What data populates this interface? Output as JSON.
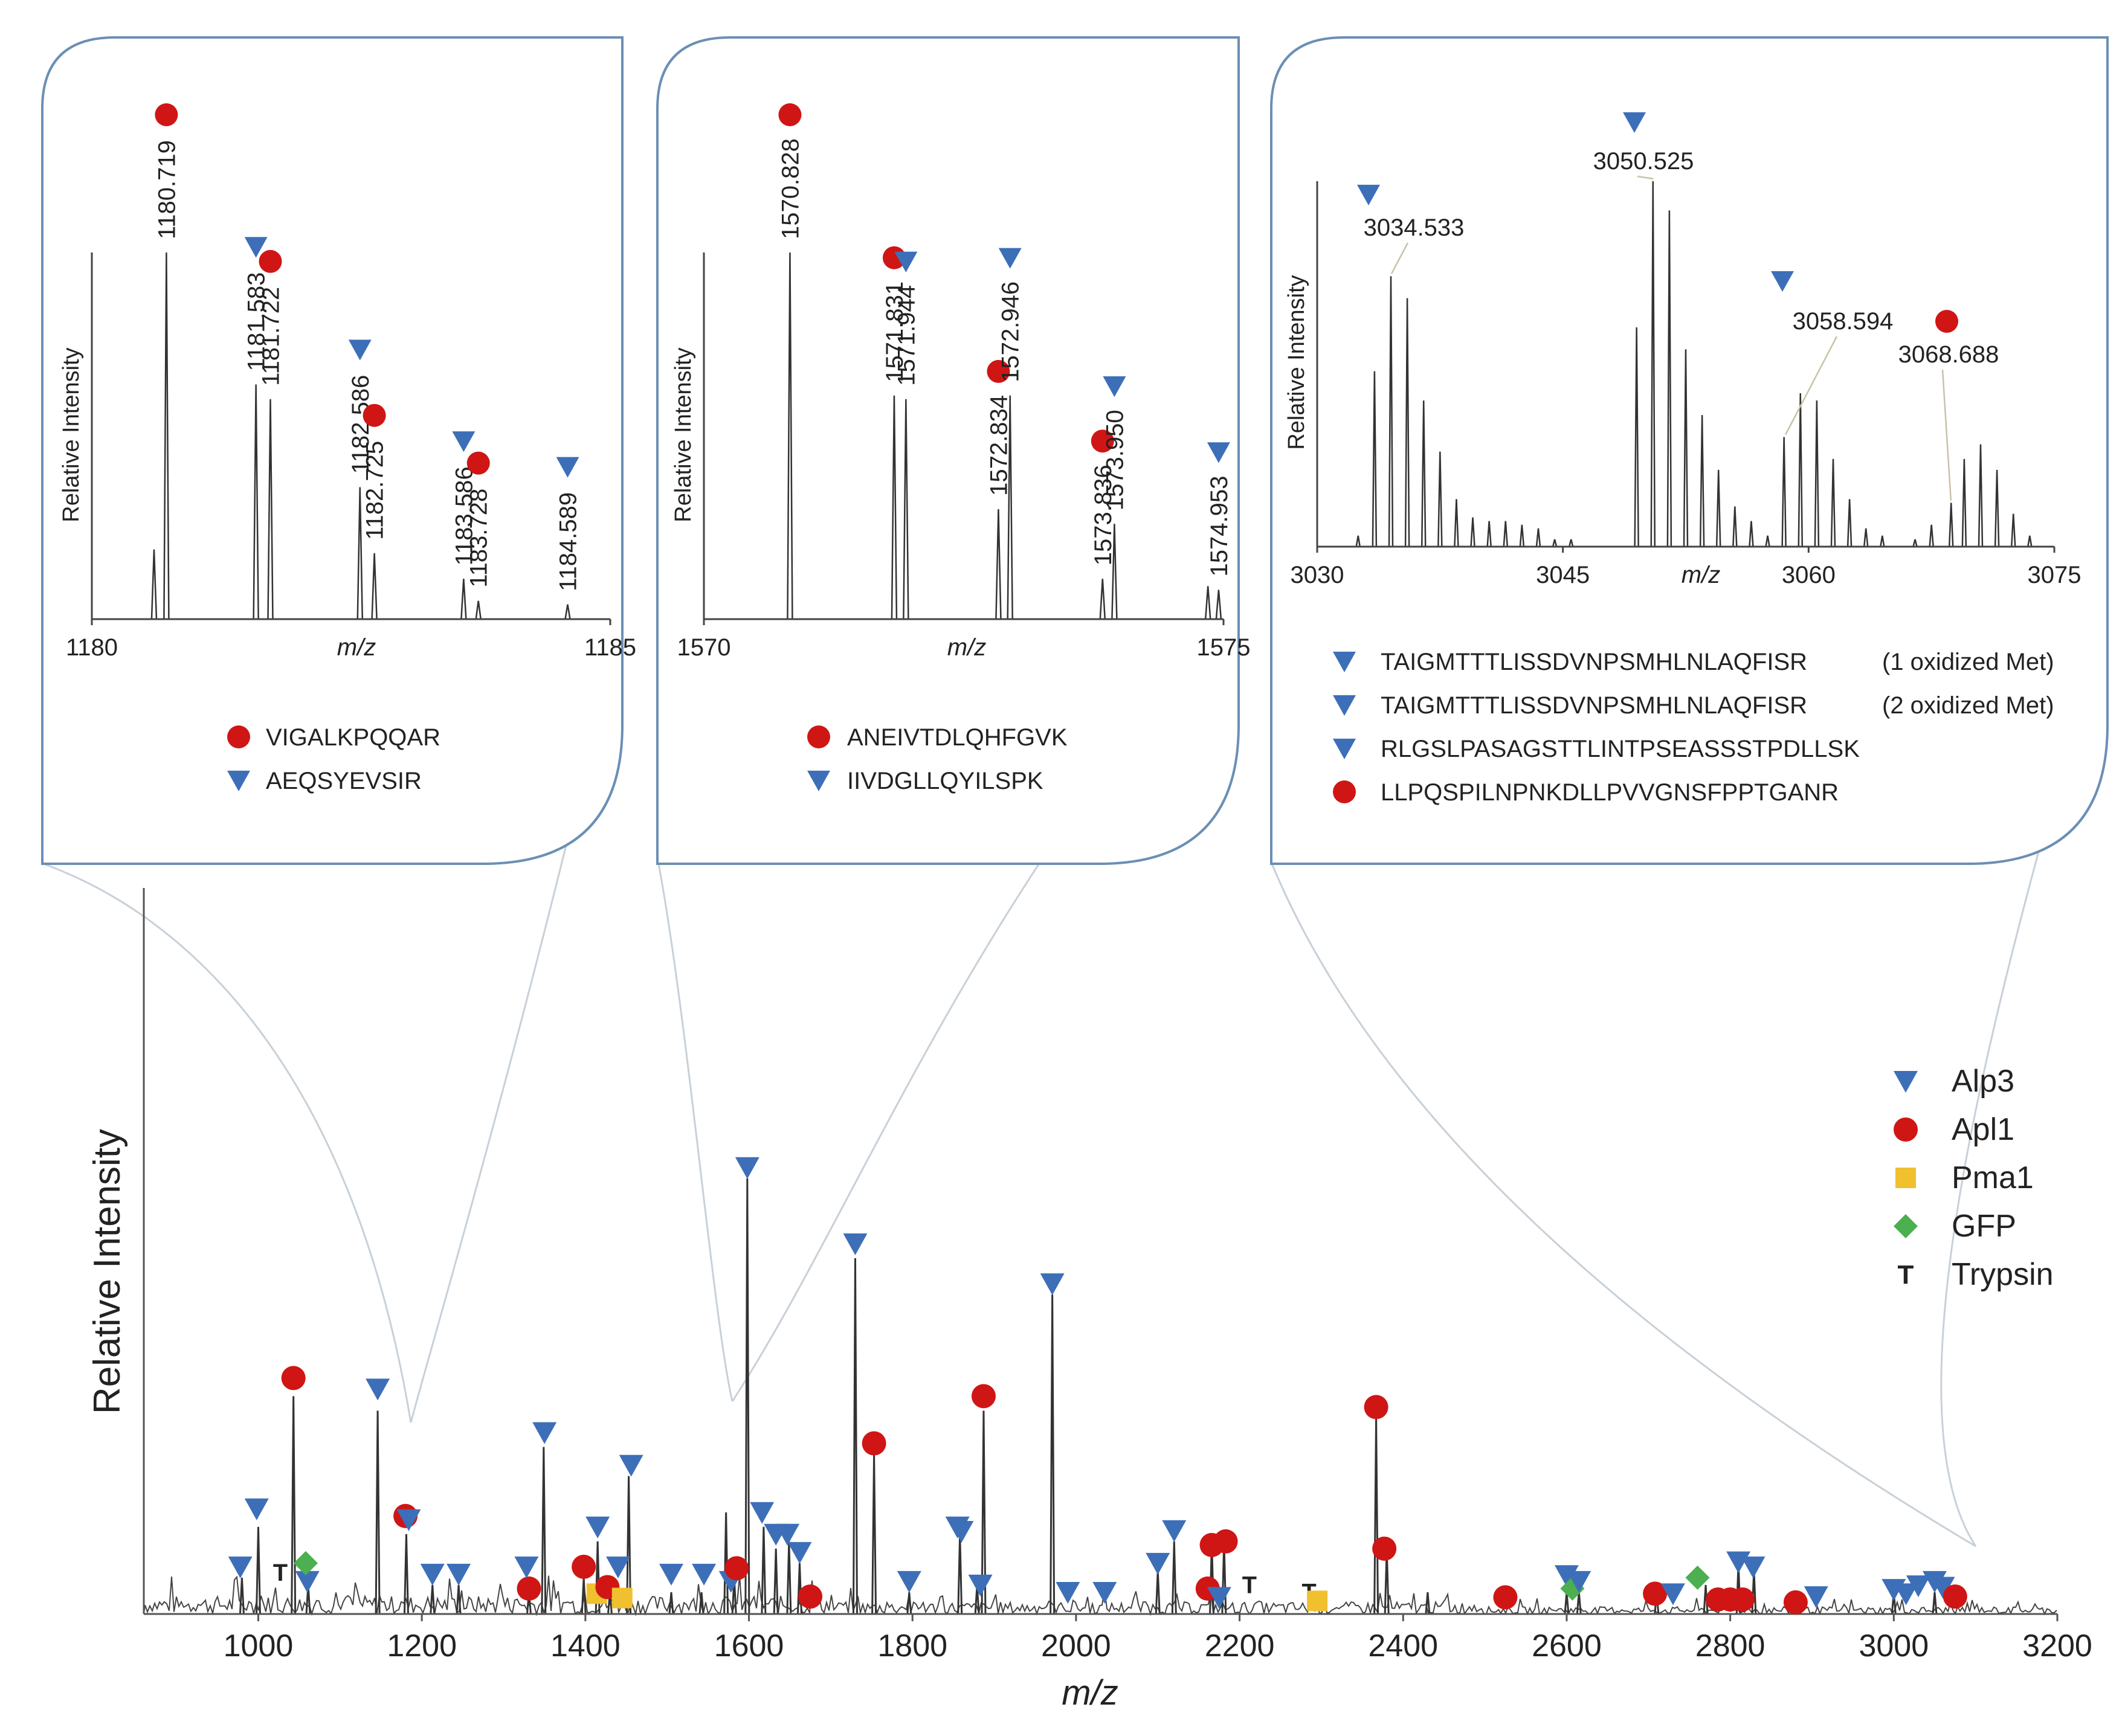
{
  "colors": {
    "alp3": "#3d6fb8",
    "apl1": "#d01515",
    "pma1": "#f0c02e",
    "gfp": "#4caf50",
    "trypsin": "#111111",
    "spectrum": "#333333",
    "inset_border": "#6b8fb5"
  },
  "chart_data": [
    {
      "type": "line",
      "id": "main",
      "xlabel": "m/z",
      "ylabel": "Relative Intensity",
      "xlim": [
        860,
        3200
      ],
      "ylim": [
        0,
        100
      ],
      "xticks": [
        "1000",
        "1200",
        "1400",
        "1600",
        "1800",
        "2000",
        "2200",
        "2400",
        "2600",
        "2800",
        "3000",
        "3200"
      ],
      "legend": [
        {
          "label": "Alp3",
          "marker": "triangle",
          "series": "alp3"
        },
        {
          "label": "Apl1",
          "marker": "circle",
          "series": "apl1"
        },
        {
          "label": "Pma1",
          "marker": "square",
          "series": "pma1"
        },
        {
          "label": "GFP",
          "marker": "diamond",
          "series": "gfp"
        },
        {
          "label": "Trypsin",
          "marker": "T",
          "series": "trypsin"
        }
      ],
      "peaks": [
        {
          "x": 980,
          "y": 5
        },
        {
          "x": 1000,
          "y": 12
        },
        {
          "x": 1043,
          "y": 30
        },
        {
          "x": 1061,
          "y": 4
        },
        {
          "x": 1146,
          "y": 28
        },
        {
          "x": 1181,
          "y": 11
        },
        {
          "x": 1213,
          "y": 4
        },
        {
          "x": 1245,
          "y": 4
        },
        {
          "x": 1331,
          "y": 3
        },
        {
          "x": 1349,
          "y": 23
        },
        {
          "x": 1398,
          "y": 5
        },
        {
          "x": 1415,
          "y": 10
        },
        {
          "x": 1430,
          "y": 3
        },
        {
          "x": 1453,
          "y": 19
        },
        {
          "x": 1505,
          "y": 3
        },
        {
          "x": 1542,
          "y": 3
        },
        {
          "x": 1572,
          "y": 14
        },
        {
          "x": 1582,
          "y": 5
        },
        {
          "x": 1598,
          "y": 60
        },
        {
          "x": 1618,
          "y": 12
        },
        {
          "x": 1633,
          "y": 9
        },
        {
          "x": 1649,
          "y": 10
        },
        {
          "x": 1662,
          "y": 7
        },
        {
          "x": 1730,
          "y": 49
        },
        {
          "x": 1753,
          "y": 22
        },
        {
          "x": 1796,
          "y": 3
        },
        {
          "x": 1858,
          "y": 11
        },
        {
          "x": 1879,
          "y": 4
        },
        {
          "x": 1887,
          "y": 28
        },
        {
          "x": 1971,
          "y": 44
        },
        {
          "x": 2100,
          "y": 6
        },
        {
          "x": 2120,
          "y": 10
        },
        {
          "x": 2166,
          "y": 10
        },
        {
          "x": 2181,
          "y": 10
        },
        {
          "x": 2367,
          "y": 27
        },
        {
          "x": 2380,
          "y": 9
        },
        {
          "x": 2430,
          "y": 3
        },
        {
          "x": 2600,
          "y": 3
        },
        {
          "x": 2615,
          "y": 3
        },
        {
          "x": 2710,
          "y": 3
        },
        {
          "x": 2770,
          "y": 4
        },
        {
          "x": 2810,
          "y": 7
        },
        {
          "x": 2829,
          "y": 6
        },
        {
          "x": 3000,
          "y": 3
        },
        {
          "x": 3050,
          "y": 3
        }
      ],
      "annotations": [
        {
          "x": 978,
          "y": 6.5,
          "s": "alp3"
        },
        {
          "x": 998,
          "y": 14.5,
          "s": "alp3"
        },
        {
          "x": 1060,
          "y": 4.5,
          "s": "alp3"
        },
        {
          "x": 1043,
          "y": 32.5,
          "s": "apl1"
        },
        {
          "x": 1058,
          "y": 7,
          "s": "gfp"
        },
        {
          "x": 1027,
          "y": 5.7,
          "s": "trypsin"
        },
        {
          "x": 1146,
          "y": 31,
          "s": "alp3"
        },
        {
          "x": 1180,
          "y": 13.5,
          "s": "apl1"
        },
        {
          "x": 1184,
          "y": 13,
          "s": "alp3"
        },
        {
          "x": 1213,
          "y": 5.5,
          "s": "alp3"
        },
        {
          "x": 1245,
          "y": 5.5,
          "s": "alp3"
        },
        {
          "x": 1331,
          "y": 3.5,
          "s": "apl1"
        },
        {
          "x": 1328,
          "y": 6.5,
          "s": "alp3"
        },
        {
          "x": 1350,
          "y": 25,
          "s": "alp3"
        },
        {
          "x": 1398,
          "y": 6.5,
          "s": "apl1"
        },
        {
          "x": 1415,
          "y": 12,
          "s": "alp3"
        },
        {
          "x": 1414,
          "y": 2.8,
          "s": "pma1"
        },
        {
          "x": 1427,
          "y": 3.7,
          "s": "apl1"
        },
        {
          "x": 1445,
          "y": 2.2,
          "s": "pma1"
        },
        {
          "x": 1440,
          "y": 6.5,
          "s": "alp3"
        },
        {
          "x": 1456,
          "y": 20.5,
          "s": "alp3"
        },
        {
          "x": 1505,
          "y": 5.5,
          "s": "alp3"
        },
        {
          "x": 1545,
          "y": 5.5,
          "s": "alp3"
        },
        {
          "x": 1578,
          "y": 4.5,
          "s": "alp3"
        },
        {
          "x": 1585,
          "y": 6.3,
          "s": "apl1"
        },
        {
          "x": 1598,
          "y": 61.5,
          "s": "alp3"
        },
        {
          "x": 1616,
          "y": 14,
          "s": "alp3"
        },
        {
          "x": 1633,
          "y": 11,
          "s": "alp3"
        },
        {
          "x": 1647,
          "y": 11,
          "s": "alp3"
        },
        {
          "x": 1662,
          "y": 8.5,
          "s": "alp3"
        },
        {
          "x": 1675,
          "y": 2.4,
          "s": "apl1"
        },
        {
          "x": 1730,
          "y": 51,
          "s": "alp3"
        },
        {
          "x": 1753,
          "y": 23.5,
          "s": "apl1"
        },
        {
          "x": 1796,
          "y": 4.5,
          "s": "alp3"
        },
        {
          "x": 1855,
          "y": 12,
          "s": "alp3"
        },
        {
          "x": 1860,
          "y": 11.4,
          "s": "alp3"
        },
        {
          "x": 1883,
          "y": 4,
          "s": "alp3"
        },
        {
          "x": 1887,
          "y": 30,
          "s": "apl1"
        },
        {
          "x": 1971,
          "y": 45.5,
          "s": "alp3"
        },
        {
          "x": 1990,
          "y": 3,
          "s": "alp3"
        },
        {
          "x": 2035,
          "y": 3,
          "s": "alp3"
        },
        {
          "x": 2100,
          "y": 7,
          "s": "alp3"
        },
        {
          "x": 2120,
          "y": 11.5,
          "s": "alp3"
        },
        {
          "x": 2161,
          "y": 3.5,
          "s": "apl1"
        },
        {
          "x": 2166,
          "y": 9.5,
          "s": "apl1"
        },
        {
          "x": 2183,
          "y": 10,
          "s": "apl1"
        },
        {
          "x": 2175,
          "y": 2.3,
          "s": "alp3"
        },
        {
          "x": 2212,
          "y": 4,
          "s": "trypsin"
        },
        {
          "x": 2285,
          "y": 3,
          "s": "trypsin"
        },
        {
          "x": 2295,
          "y": 1.8,
          "s": "pma1"
        },
        {
          "x": 2367,
          "y": 28.5,
          "s": "apl1"
        },
        {
          "x": 2377,
          "y": 9,
          "s": "apl1"
        },
        {
          "x": 2525,
          "y": 2.3,
          "s": "apl1"
        },
        {
          "x": 2600,
          "y": 5.3,
          "s": "alp3"
        },
        {
          "x": 2607,
          "y": 3.5,
          "s": "gfp"
        },
        {
          "x": 2615,
          "y": 4.5,
          "s": "alp3"
        },
        {
          "x": 2708,
          "y": 2.8,
          "s": "apl1"
        },
        {
          "x": 2730,
          "y": 2.8,
          "s": "alp3"
        },
        {
          "x": 2760,
          "y": 5,
          "s": "gfp"
        },
        {
          "x": 2785,
          "y": 2,
          "s": "apl1"
        },
        {
          "x": 2800,
          "y": 2,
          "s": "apl1"
        },
        {
          "x": 2815,
          "y": 2,
          "s": "apl1"
        },
        {
          "x": 2810,
          "y": 7.2,
          "s": "alp3"
        },
        {
          "x": 2828,
          "y": 6.5,
          "s": "alp3"
        },
        {
          "x": 2880,
          "y": 1.6,
          "s": "apl1"
        },
        {
          "x": 2905,
          "y": 2.4,
          "s": "alp3"
        },
        {
          "x": 3000,
          "y": 3.4,
          "s": "alp3"
        },
        {
          "x": 3015,
          "y": 2.8,
          "s": "alp3"
        },
        {
          "x": 3030,
          "y": 3.9,
          "s": "alp3"
        },
        {
          "x": 3050,
          "y": 4.5,
          "s": "alp3"
        },
        {
          "x": 3060,
          "y": 3.7,
          "s": "alp3"
        },
        {
          "x": 3075,
          "y": 2.4,
          "s": "apl1"
        }
      ]
    },
    {
      "type": "line",
      "id": "inset1",
      "xlabel": "m/z",
      "ylabel": "Relative Intensity",
      "xlim": [
        1180,
        1185
      ],
      "ylim": [
        0,
        100
      ],
      "xticks": [
        "1180",
        "1185"
      ],
      "peaks": [
        {
          "x": 1180.6,
          "y": 19
        },
        {
          "x": 1180.719,
          "y": 100
        },
        {
          "x": 1181.583,
          "y": 64
        },
        {
          "x": 1181.722,
          "y": 60
        },
        {
          "x": 1182.586,
          "y": 36
        },
        {
          "x": 1182.725,
          "y": 18
        },
        {
          "x": 1183.586,
          "y": 11
        },
        {
          "x": 1183.728,
          "y": 5
        },
        {
          "x": 1184.589,
          "y": 4
        }
      ],
      "labels": [
        {
          "x": 1180.719,
          "text": "1180.719",
          "s": "apl1"
        },
        {
          "x": 1181.583,
          "text": "1181.583",
          "s": "alp3"
        },
        {
          "x": 1181.722,
          "text": "1181.722",
          "s": "apl1"
        },
        {
          "x": 1182.586,
          "text": "1182.586",
          "s": "alp3"
        },
        {
          "x": 1182.725,
          "text": "1182.725",
          "s": "apl1"
        },
        {
          "x": 1183.586,
          "text": "1183.586",
          "s": "alp3"
        },
        {
          "x": 1183.728,
          "text": "1183.728",
          "s": "apl1"
        },
        {
          "x": 1184.589,
          "text": "1184.589",
          "s": "alp3"
        }
      ],
      "legend": [
        {
          "label": "VIGALKPQQAR",
          "marker": "circle",
          "series": "apl1"
        },
        {
          "label": "AEQSYEVSIR",
          "marker": "triangle",
          "series": "alp3"
        }
      ]
    },
    {
      "type": "line",
      "id": "inset2",
      "xlabel": "m/z",
      "ylabel": "Relative Intensity",
      "xlim": [
        1570,
        1575
      ],
      "ylim": [
        0,
        100
      ],
      "xticks": [
        "1570",
        "1575"
      ],
      "peaks": [
        {
          "x": 1570.828,
          "y": 100
        },
        {
          "x": 1571.831,
          "y": 61
        },
        {
          "x": 1571.944,
          "y": 60
        },
        {
          "x": 1572.834,
          "y": 30
        },
        {
          "x": 1572.946,
          "y": 61
        },
        {
          "x": 1573.836,
          "y": 11
        },
        {
          "x": 1573.95,
          "y": 26
        },
        {
          "x": 1574.85,
          "y": 9
        },
        {
          "x": 1574.953,
          "y": 8
        }
      ],
      "labels": [
        {
          "x": 1570.828,
          "text": "1570.828",
          "s": "apl1"
        },
        {
          "x": 1571.831,
          "text": "1571.831",
          "s": "apl1"
        },
        {
          "x": 1571.944,
          "text": "1571.944",
          "s": "alp3"
        },
        {
          "x": 1572.834,
          "text": "1572.834",
          "s": "apl1"
        },
        {
          "x": 1572.946,
          "text": "1572.946",
          "s": "alp3"
        },
        {
          "x": 1573.836,
          "text": "1573.836",
          "s": "apl1"
        },
        {
          "x": 1573.95,
          "text": "1573.950",
          "s": "alp3"
        },
        {
          "x": 1574.953,
          "text": "1574.953",
          "s": "alp3"
        }
      ],
      "legend": [
        {
          "label": "ANEIVTDLQHFGVK",
          "marker": "circle",
          "series": "apl1"
        },
        {
          "label": "IIVDGLLQYILSPK",
          "marker": "triangle",
          "series": "alp3"
        }
      ]
    },
    {
      "type": "line",
      "id": "inset3",
      "xlabel": "m/z",
      "ylabel": "Relative Intensity",
      "xlim": [
        3030,
        3075
      ],
      "ylim": [
        0,
        100
      ],
      "xticks": [
        "3030",
        "3045",
        "3060",
        "3075"
      ],
      "peaks": [
        {
          "x": 3032.5,
          "y": 3
        },
        {
          "x": 3033.5,
          "y": 48
        },
        {
          "x": 3034.5,
          "y": 74
        },
        {
          "x": 3035.5,
          "y": 68
        },
        {
          "x": 3036.5,
          "y": 40
        },
        {
          "x": 3037.5,
          "y": 26
        },
        {
          "x": 3038.5,
          "y": 13
        },
        {
          "x": 3039.5,
          "y": 8
        },
        {
          "x": 3040.5,
          "y": 7
        },
        {
          "x": 3041.5,
          "y": 7
        },
        {
          "x": 3042.5,
          "y": 6
        },
        {
          "x": 3043.5,
          "y": 5
        },
        {
          "x": 3044.5,
          "y": 2
        },
        {
          "x": 3045.5,
          "y": 2
        },
        {
          "x": 3049.5,
          "y": 60
        },
        {
          "x": 3050.5,
          "y": 100
        },
        {
          "x": 3051.5,
          "y": 92
        },
        {
          "x": 3052.5,
          "y": 54
        },
        {
          "x": 3053.5,
          "y": 36
        },
        {
          "x": 3054.5,
          "y": 21
        },
        {
          "x": 3055.5,
          "y": 11
        },
        {
          "x": 3056.5,
          "y": 7
        },
        {
          "x": 3057.5,
          "y": 3
        },
        {
          "x": 3058.5,
          "y": 30
        },
        {
          "x": 3059.5,
          "y": 42
        },
        {
          "x": 3060.5,
          "y": 40
        },
        {
          "x": 3061.5,
          "y": 24
        },
        {
          "x": 3062.5,
          "y": 13
        },
        {
          "x": 3063.5,
          "y": 5
        },
        {
          "x": 3064.5,
          "y": 3
        },
        {
          "x": 3066.5,
          "y": 2
        },
        {
          "x": 3067.5,
          "y": 6
        },
        {
          "x": 3068.7,
          "y": 12
        },
        {
          "x": 3069.5,
          "y": 24
        },
        {
          "x": 3070.5,
          "y": 28
        },
        {
          "x": 3071.5,
          "y": 21
        },
        {
          "x": 3072.5,
          "y": 9
        },
        {
          "x": 3073.5,
          "y": 3
        }
      ],
      "labels": [
        {
          "x": 3034.533,
          "text": "3034.533",
          "s": "alp3"
        },
        {
          "x": 3050.525,
          "text": "3050.525",
          "s": "alp3"
        },
        {
          "x": 3058.594,
          "text": "3058.594",
          "s": "alp3"
        },
        {
          "x": 3068.688,
          "text": "3068.688",
          "s": "apl1"
        }
      ],
      "legend": [
        {
          "label": "TAIGMTTTLISSDVNPSMHLNLAQFISR",
          "note": "(1 oxidized Met)",
          "marker": "triangle",
          "series": "alp3"
        },
        {
          "label": "TAIGMTTTLISSDVNPSMHLNLAQFISR",
          "note": "(2 oxidized Met)",
          "marker": "triangle",
          "series": "alp3"
        },
        {
          "label": "RLGSLPASAGSTTLINTPSEASSSTPDLLSK",
          "note": "",
          "marker": "triangle",
          "series": "alp3"
        },
        {
          "label": "LLPQSPILNPNKDLLPVVGNSFPPTGANR",
          "note": "",
          "marker": "circle",
          "series": "apl1"
        }
      ]
    }
  ]
}
